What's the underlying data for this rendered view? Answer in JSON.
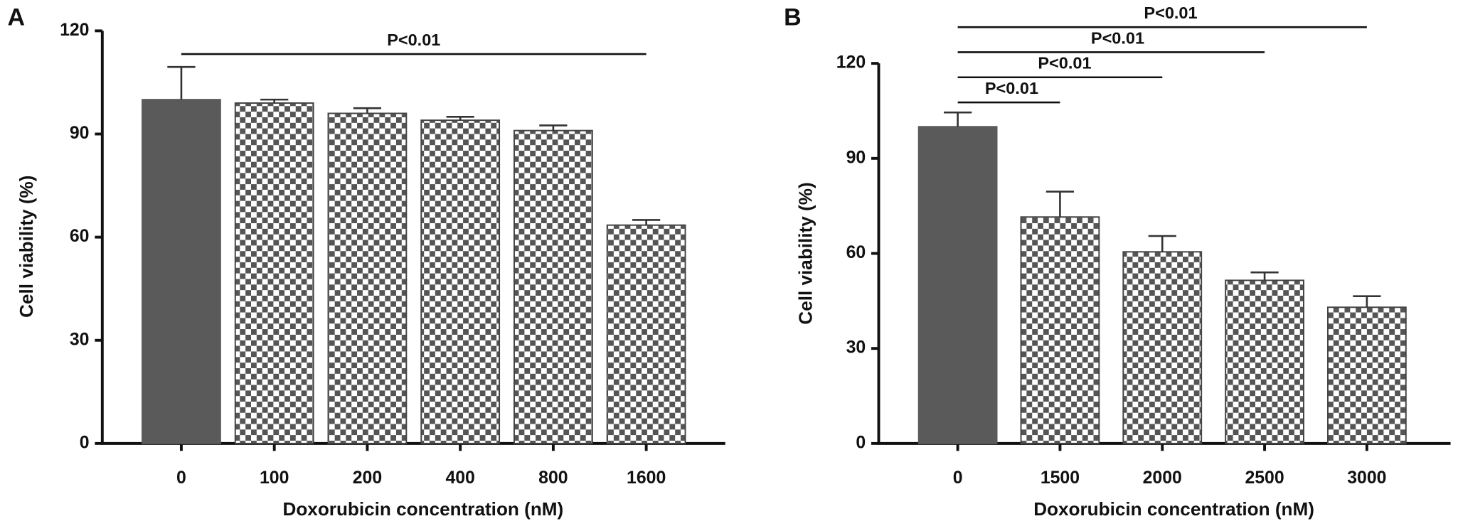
{
  "chart_data": [
    {
      "type": "bar",
      "panel_label": "A",
      "y_label": "Cell viability (%)",
      "x_label": "Doxorubicin concentration (nM)",
      "categories": [
        "0",
        "100",
        "200",
        "400",
        "800",
        "1600"
      ],
      "values": [
        100,
        99,
        96,
        94,
        91,
        63.5
      ],
      "errors": [
        9.5,
        1,
        1.5,
        1,
        1.5,
        1.5
      ],
      "bar_fill": [
        "solid",
        "checkered",
        "checkered",
        "checkered",
        "checkered",
        "checkered"
      ],
      "color": "#5a5a5a",
      "ylim": [
        0,
        120
      ],
      "yticks": [
        0,
        30,
        60,
        90,
        120
      ],
      "annotations": [
        {
          "label": "P<0.01",
          "between": [
            "0",
            "1600"
          ]
        }
      ]
    },
    {
      "type": "bar",
      "panel_label": "B",
      "y_label": "Cell viability (%)",
      "x_label": "Doxorubicin concentration (nM)",
      "categories": [
        "0",
        "1500",
        "2000",
        "2500",
        "3000"
      ],
      "values": [
        100,
        71.5,
        60.5,
        51.5,
        43
      ],
      "errors": [
        4.5,
        8,
        5,
        2.5,
        3.5
      ],
      "bar_fill": [
        "solid",
        "checkered",
        "checkered",
        "checkered",
        "checkered"
      ],
      "color": "#5a5a5a",
      "ylim": [
        0,
        120
      ],
      "yticks": [
        0,
        30,
        60,
        90,
        120
      ],
      "annotations": [
        {
          "label": "P<0.01",
          "between": [
            "0",
            "1500"
          ]
        },
        {
          "label": "P<0.01",
          "between": [
            "0",
            "2000"
          ]
        },
        {
          "label": "P<0.01",
          "between": [
            "0",
            "2500"
          ]
        },
        {
          "label": "P<0.01",
          "between": [
            "0",
            "3000"
          ]
        }
      ]
    }
  ]
}
